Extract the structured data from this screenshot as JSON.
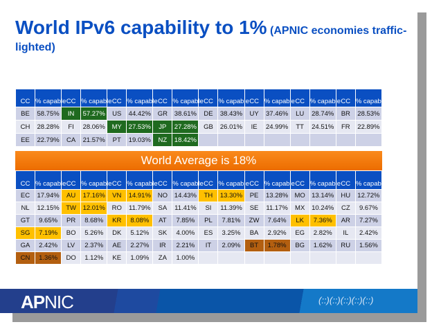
{
  "title": {
    "main": "World IPv6 capability to 1%",
    "sub": "(APNIC economies traffic-lighted)"
  },
  "headers": {
    "cc": "CC",
    "pct": "% capable"
  },
  "banner": "World Average is 18%",
  "colors": {
    "header": "#0a4fc2",
    "green": "#1f6a1f",
    "yellow": "#ffc000",
    "brown": "#b35f10",
    "banner": "#f07a0a"
  },
  "table1": [
    [
      [
        "BE",
        "58.75%",
        ""
      ],
      [
        "IN",
        "57.27%",
        "green"
      ],
      [
        "US",
        "44.42%",
        ""
      ],
      [
        "GR",
        "38.61%",
        ""
      ],
      [
        "DE",
        "38.43%",
        ""
      ],
      [
        "UY",
        "37.46%",
        ""
      ],
      [
        "LU",
        "28.74%",
        ""
      ],
      [
        "BR",
        "28.53%",
        ""
      ]
    ],
    [
      [
        "CH",
        "28.28%",
        ""
      ],
      [
        "FI",
        "28.06%",
        ""
      ],
      [
        "MY",
        "27.53%",
        "green"
      ],
      [
        "JP",
        "27.28%",
        "green"
      ],
      [
        "GB",
        "26.01%",
        ""
      ],
      [
        "IE",
        "24.99%",
        ""
      ],
      [
        "TT",
        "24.51%",
        ""
      ],
      [
        "FR",
        "22.89%",
        ""
      ]
    ],
    [
      [
        "EE",
        "22.79%",
        ""
      ],
      [
        "CA",
        "21.57%",
        ""
      ],
      [
        "PT",
        "19.03%",
        ""
      ],
      [
        "NZ",
        "18.42%",
        "green"
      ],
      [
        "",
        "",
        ""
      ],
      [
        "",
        "",
        ""
      ],
      [
        "",
        "",
        ""
      ],
      [
        "",
        "",
        ""
      ]
    ]
  ],
  "table2": [
    [
      [
        "EC",
        "17.94%",
        ""
      ],
      [
        "AU",
        "17.16%",
        "yellow"
      ],
      [
        "VN",
        "14.91%",
        "yellow"
      ],
      [
        "NO",
        "14.43%",
        ""
      ],
      [
        "TH",
        "13.30%",
        "yellow"
      ],
      [
        "PE",
        "13.28%",
        ""
      ],
      [
        "MO",
        "13.14%",
        ""
      ],
      [
        "HU",
        "12.72%",
        ""
      ]
    ],
    [
      [
        "NL",
        "12.15%",
        ""
      ],
      [
        "TW",
        "12.01%",
        "yellow"
      ],
      [
        "RO",
        "11.79%",
        ""
      ],
      [
        "SA",
        "11.41%",
        ""
      ],
      [
        "SI",
        "11.39%",
        ""
      ],
      [
        "SE",
        "11.17%",
        ""
      ],
      [
        "MX",
        "10.24%",
        ""
      ],
      [
        "CZ",
        "9.67%",
        ""
      ]
    ],
    [
      [
        "GT",
        "9.65%",
        ""
      ],
      [
        "PR",
        "8.68%",
        ""
      ],
      [
        "KR",
        "8.08%",
        "yellow"
      ],
      [
        "AT",
        "7.85%",
        ""
      ],
      [
        "PL",
        "7.81%",
        ""
      ],
      [
        "ZW",
        "7.64%",
        ""
      ],
      [
        "LK",
        "7.36%",
        "yellow"
      ],
      [
        "AR",
        "7.27%",
        ""
      ]
    ],
    [
      [
        "SG",
        "7.19%",
        "yellow"
      ],
      [
        "BO",
        "5.26%",
        ""
      ],
      [
        "DK",
        "5.12%",
        ""
      ],
      [
        "SK",
        "4.00%",
        ""
      ],
      [
        "ES",
        "3.25%",
        ""
      ],
      [
        "BA",
        "2.92%",
        ""
      ],
      [
        "EG",
        "2.82%",
        ""
      ],
      [
        "IL",
        "2.42%",
        ""
      ]
    ],
    [
      [
        "GA",
        "2.42%",
        ""
      ],
      [
        "LV",
        "2.37%",
        ""
      ],
      [
        "AE",
        "2.27%",
        ""
      ],
      [
        "IR",
        "2.21%",
        ""
      ],
      [
        "IT",
        "2.09%",
        ""
      ],
      [
        "BT",
        "1.78%",
        "brown"
      ],
      [
        "BG",
        "1.62%",
        ""
      ],
      [
        "RU",
        "1.56%",
        ""
      ]
    ],
    [
      [
        "CN",
        "1.36%",
        "brown"
      ],
      [
        "DO",
        "1.12%",
        ""
      ],
      [
        "KE",
        "1.09%",
        ""
      ],
      [
        "ZA",
        "1.00%",
        ""
      ],
      [
        "",
        "",
        ""
      ],
      [
        "",
        "",
        ""
      ],
      [
        "",
        "",
        ""
      ],
      [
        "",
        "",
        ""
      ]
    ]
  ],
  "footer": {
    "logo_bold": "AP",
    "logo_rest": "NIC",
    "mark": "(::)(::)(::)(::)(::)"
  }
}
